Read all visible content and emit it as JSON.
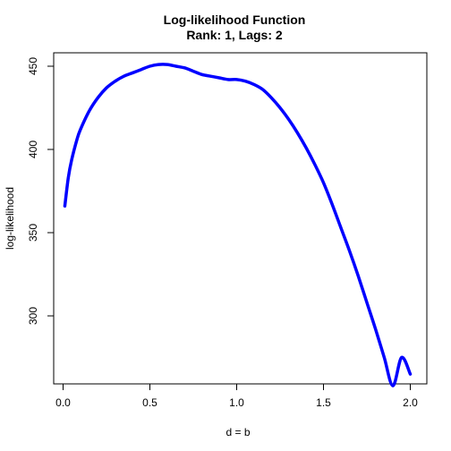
{
  "chart_data": {
    "type": "line",
    "title": "Log-likelihood Function",
    "subtitle": "Rank: 1, Lags: 2",
    "xlabel": "d = b",
    "ylabel": "log-likelihood",
    "xlim": [
      0.0,
      2.0
    ],
    "ylim": [
      263,
      455
    ],
    "x_ticks": [
      0.0,
      0.5,
      1.0,
      1.5,
      2.0
    ],
    "x_tick_labels": [
      "0.0",
      "0.5",
      "1.0",
      "1.5",
      "2.0"
    ],
    "y_ticks": [
      300,
      350,
      400,
      450
    ],
    "y_tick_labels": [
      "300",
      "350",
      "400",
      "450"
    ],
    "grid": false,
    "line_color": "#0000FF",
    "series": [
      {
        "x": [
          0.01,
          0.03,
          0.05,
          0.08,
          0.1,
          0.15,
          0.2,
          0.25,
          0.3,
          0.35,
          0.4,
          0.45,
          0.5,
          0.55,
          0.6,
          0.65,
          0.7,
          0.75,
          0.8,
          0.85,
          0.9,
          0.95,
          1.0,
          1.05,
          1.1,
          1.15,
          1.2,
          1.25,
          1.3,
          1.35,
          1.4,
          1.45,
          1.5,
          1.55,
          1.6,
          1.65,
          1.7,
          1.75,
          1.8,
          1.85,
          1.9,
          1.95,
          2.0
        ],
        "y": [
          366,
          383,
          394,
          406,
          412,
          423,
          431,
          437,
          441,
          444,
          446,
          448,
          450,
          451,
          451,
          450,
          449,
          447,
          445,
          444,
          443,
          442,
          442,
          441,
          439,
          436,
          431,
          425,
          418,
          410,
          401,
          391,
          380,
          367,
          353,
          339,
          324,
          308,
          292,
          275,
          258,
          275,
          265
        ]
      }
    ]
  }
}
